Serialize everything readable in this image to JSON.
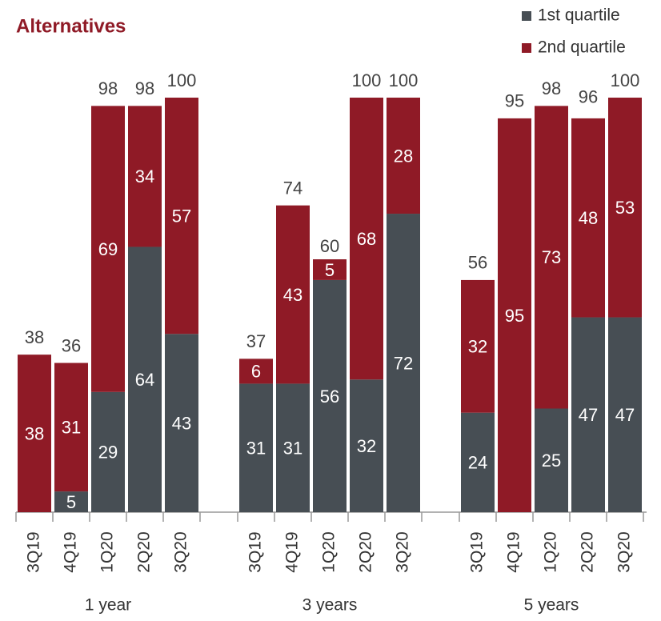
{
  "title": "Alternatives",
  "chart_data": [
    {
      "type": "stacked-bar",
      "xlabel": "1 year",
      "categories": [
        "3Q19",
        "4Q19",
        "1Q20",
        "2Q20",
        "3Q20"
      ],
      "series": [
        {
          "name": "1st quartile",
          "color": "#474e54",
          "values": [
            null,
            5,
            29,
            64,
            43
          ]
        },
        {
          "name": "2nd quartile",
          "color": "#8f1a26",
          "values": [
            38,
            31,
            69,
            34,
            57
          ]
        }
      ],
      "totals": [
        38,
        36,
        98,
        98,
        100
      ],
      "ylim": [
        0,
        100
      ]
    },
    {
      "type": "stacked-bar",
      "xlabel": "3 years",
      "categories": [
        "3Q19",
        "4Q19",
        "1Q20",
        "2Q20",
        "3Q20"
      ],
      "series": [
        {
          "name": "1st quartile",
          "color": "#474e54",
          "values": [
            31,
            31,
            56,
            32,
            72
          ]
        },
        {
          "name": "2nd quartile",
          "color": "#8f1a26",
          "values": [
            6,
            43,
            5,
            68,
            28
          ]
        }
      ],
      "totals": [
        37,
        74,
        60,
        100,
        100
      ],
      "ylim": [
        0,
        100
      ]
    },
    {
      "type": "stacked-bar",
      "xlabel": "5 years",
      "categories": [
        "3Q19",
        "4Q19",
        "1Q20",
        "2Q20",
        "3Q20"
      ],
      "series": [
        {
          "name": "1st quartile",
          "color": "#474e54",
          "values": [
            24,
            null,
            25,
            47,
            47
          ]
        },
        {
          "name": "2nd quartile",
          "color": "#8f1a26",
          "values": [
            32,
            95,
            73,
            48,
            53
          ]
        }
      ],
      "totals": [
        56,
        95,
        98,
        96,
        100
      ],
      "ylim": [
        0,
        100
      ]
    }
  ]
}
